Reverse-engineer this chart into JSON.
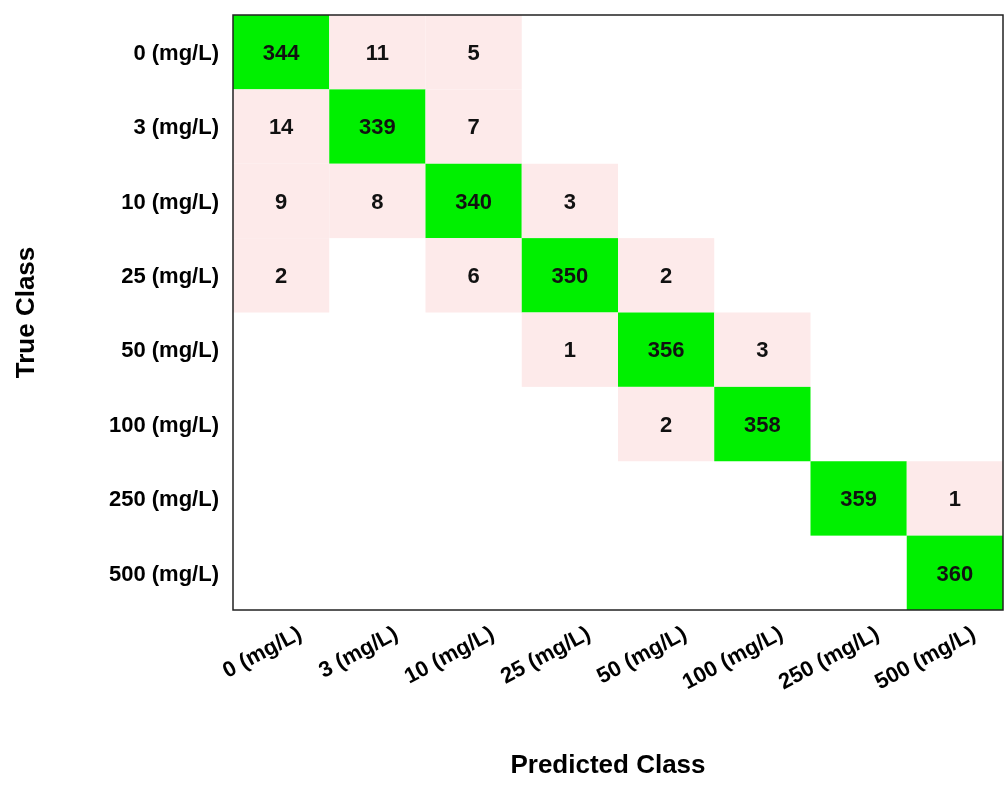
{
  "chart_data": {
    "type": "heatmap",
    "xlabel": "Predicted Class",
    "ylabel": "True Class",
    "categories": [
      "0 (mg/L)",
      "3 (mg/L)",
      "10 (mg/L)",
      "25 (mg/L)",
      "50 (mg/L)",
      "100 (mg/L)",
      "250 (mg/L)",
      "500 (mg/L)"
    ],
    "y_categories": [
      "0 (mg/L)",
      "3 (mg/L)",
      "10 (mg/L)",
      "25 (mg/L)",
      "50 (mg/L)",
      "100 (mg/L)",
      "250 (mg/L)",
      "500 (mg/L)"
    ],
    "cells": [
      [
        344,
        11,
        5,
        null,
        null,
        null,
        null,
        null
      ],
      [
        14,
        339,
        7,
        null,
        null,
        null,
        null,
        null
      ],
      [
        9,
        8,
        340,
        3,
        null,
        null,
        null,
        null
      ],
      [
        2,
        null,
        6,
        350,
        2,
        null,
        null,
        null
      ],
      [
        null,
        null,
        null,
        1,
        356,
        3,
        null,
        null
      ],
      [
        null,
        null,
        null,
        null,
        2,
        358,
        null,
        null
      ],
      [
        null,
        null,
        null,
        null,
        null,
        null,
        359,
        1
      ],
      [
        null,
        null,
        null,
        null,
        null,
        null,
        null,
        360
      ]
    ],
    "colors": [
      "#fdeaea",
      "#00f000"
    ],
    "data_labels": true
  }
}
